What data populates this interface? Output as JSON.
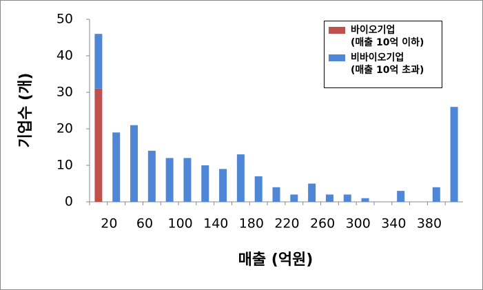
{
  "chart_data": {
    "type": "bar",
    "stacked": true,
    "y_label": "기업수 (개)",
    "x_label": "매출 (억원)",
    "categories": [
      "20",
      null,
      "60",
      null,
      "100",
      null,
      "140",
      null,
      "180",
      null,
      "220",
      null,
      "260",
      null,
      "300",
      null,
      "340",
      null,
      "380",
      null,
      null
    ],
    "series": [
      {
        "name": "바이오기업\n(매출 10억 이하)",
        "color": "#c0504d",
        "values": [
          31,
          0,
          0,
          0,
          0,
          0,
          0,
          0,
          0,
          0,
          0,
          0,
          0,
          0,
          0,
          0,
          0,
          0,
          0,
          0,
          0
        ]
      },
      {
        "name": "비바이오기업\n(매출 10억 초과)",
        "color": "#4f87d6",
        "values": [
          15,
          19,
          21,
          14,
          12,
          12,
          10,
          9,
          13,
          7,
          4,
          2,
          5,
          2,
          2,
          1,
          0,
          3,
          0,
          4,
          26
        ]
      }
    ],
    "ylim": [
      0,
      50
    ],
    "yticks": [
      0,
      10,
      20,
      30,
      40,
      50
    ],
    "grid": false,
    "legend": "top-right"
  }
}
